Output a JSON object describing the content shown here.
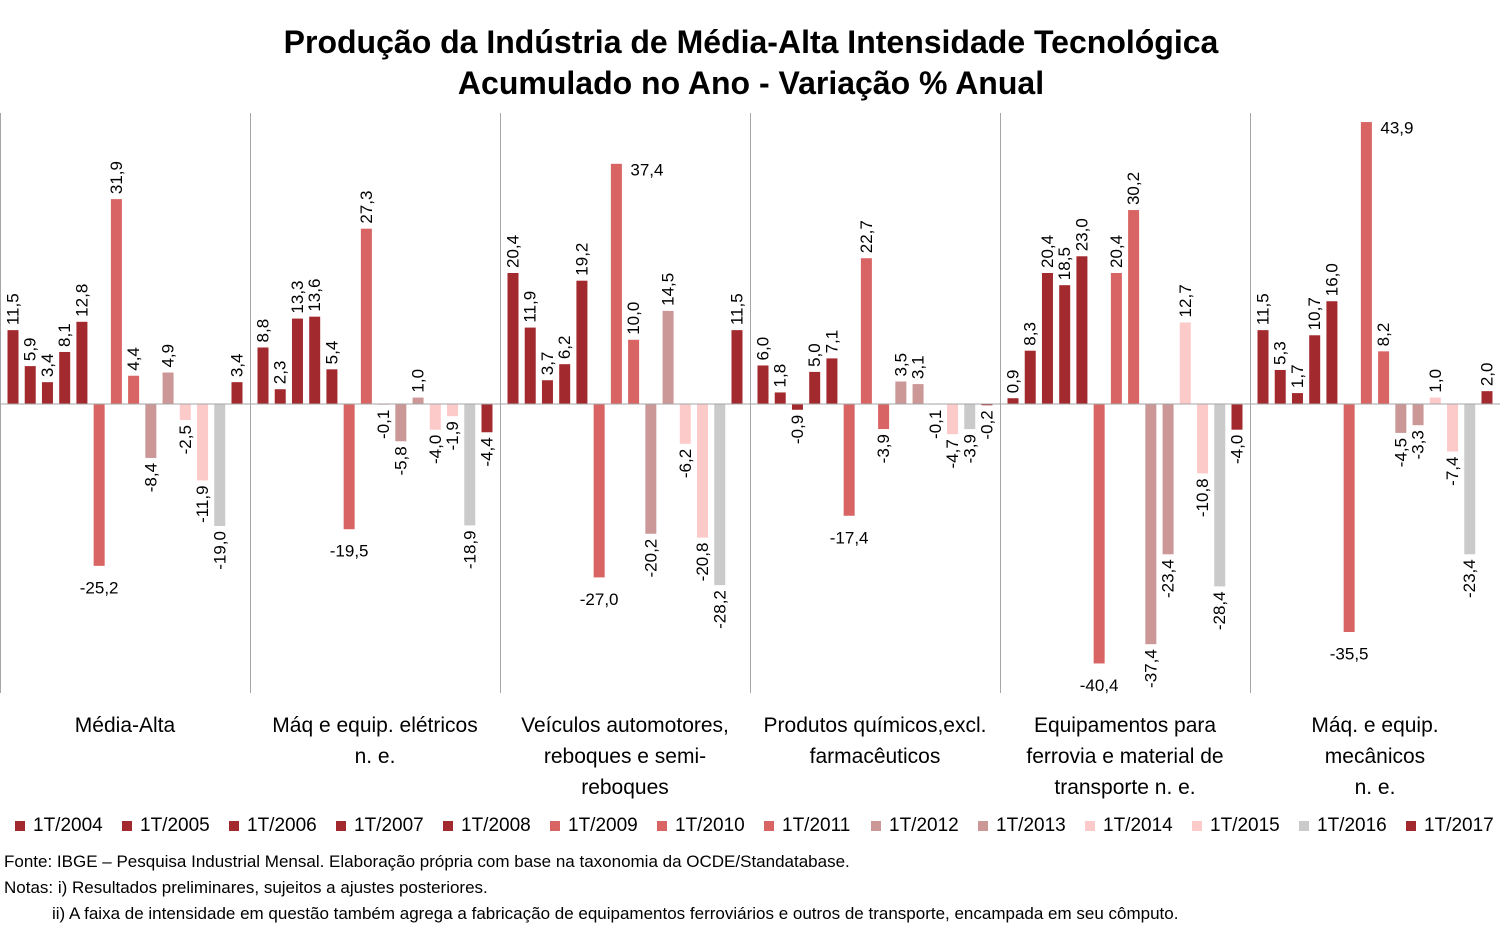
{
  "chart_data": {
    "type": "bar",
    "title": "Produção da Indústria de Média-Alta Intensidade Tecnológica",
    "subtitle": "Acumulado no Ano - Variação % Anual",
    "categories": [
      "Média-Alta",
      "Máq e equip. elétricos\nn. e.",
      "Veículos automotores,\nreboques e semi-\nreboques",
      "Produtos químicos,excl.\nfarmacêuticos",
      "Equipamentos para\nferrovia e material de\ntransporte n. e.",
      "Máq. e equip.\nmecânicos\nn. e."
    ],
    "series": [
      {
        "name": "1T/2004",
        "color": "#A22A2E",
        "values": [
          11.5,
          8.8,
          20.4,
          6.0,
          0.9,
          11.5
        ]
      },
      {
        "name": "1T/2005",
        "color": "#A22A2E",
        "values": [
          5.9,
          2.3,
          11.9,
          1.8,
          8.3,
          5.3
        ]
      },
      {
        "name": "1T/2006",
        "color": "#A22A2E",
        "values": [
          3.4,
          13.3,
          3.7,
          -0.9,
          20.4,
          1.7
        ]
      },
      {
        "name": "1T/2007",
        "color": "#A22A2E",
        "values": [
          8.1,
          13.6,
          6.2,
          5.0,
          18.5,
          10.7
        ]
      },
      {
        "name": "1T/2008",
        "color": "#A22A2E",
        "values": [
          12.8,
          5.4,
          19.2,
          7.1,
          23.0,
          16.0
        ]
      },
      {
        "name": "1T/2009",
        "color": "#D86464",
        "values": [
          -25.2,
          -19.5,
          -27.0,
          -17.4,
          -40.4,
          -35.5
        ]
      },
      {
        "name": "1T/2010",
        "color": "#D86464",
        "values": [
          31.9,
          27.3,
          37.4,
          22.7,
          20.4,
          43.9
        ]
      },
      {
        "name": "1T/2011",
        "color": "#D86464",
        "values": [
          4.4,
          -0.1,
          10.0,
          -3.9,
          30.2,
          8.2
        ]
      },
      {
        "name": "1T/2012",
        "color": "#CB9797",
        "values": [
          -8.4,
          -5.8,
          -20.2,
          3.5,
          -37.4,
          -4.5
        ]
      },
      {
        "name": "1T/2013",
        "color": "#CB9797",
        "values": [
          4.9,
          1.0,
          14.5,
          3.1,
          -23.4,
          -3.3
        ]
      },
      {
        "name": "1T/2014",
        "color": "#FDCACA",
        "values": [
          -2.5,
          -4.0,
          -6.2,
          -0.1,
          12.7,
          1.0
        ]
      },
      {
        "name": "1T/2015",
        "color": "#FDCACA",
        "values": [
          -11.9,
          -1.9,
          -20.8,
          -4.7,
          -10.8,
          -7.4
        ]
      },
      {
        "name": "1T/2016",
        "color": "#CACACA",
        "values": [
          -19.0,
          -18.9,
          -28.2,
          -3.9,
          -28.4,
          -23.4
        ]
      },
      {
        "name": "1T/2017",
        "color": "#A22A2E",
        "values": [
          3.4,
          -4.4,
          11.5,
          -0.2,
          -4.0,
          2.0
        ]
      }
    ],
    "ylim": [
      -45,
      45
    ],
    "grid": false,
    "legend": "bottom"
  },
  "footer": {
    "source": "Fonte: IBGE – Pesquisa Industrial Mensal. Elaboração própria com base na taxonomia da OCDE/Standatabase.",
    "note_1": "Notas: i) Resultados preliminares, sujeitos a ajustes posteriores.",
    "note_2": "ii) A faixa de intensidade em questão também agrega a fabricação de equipamentos ferroviários e outros de transporte, encampada em seu cômputo."
  }
}
